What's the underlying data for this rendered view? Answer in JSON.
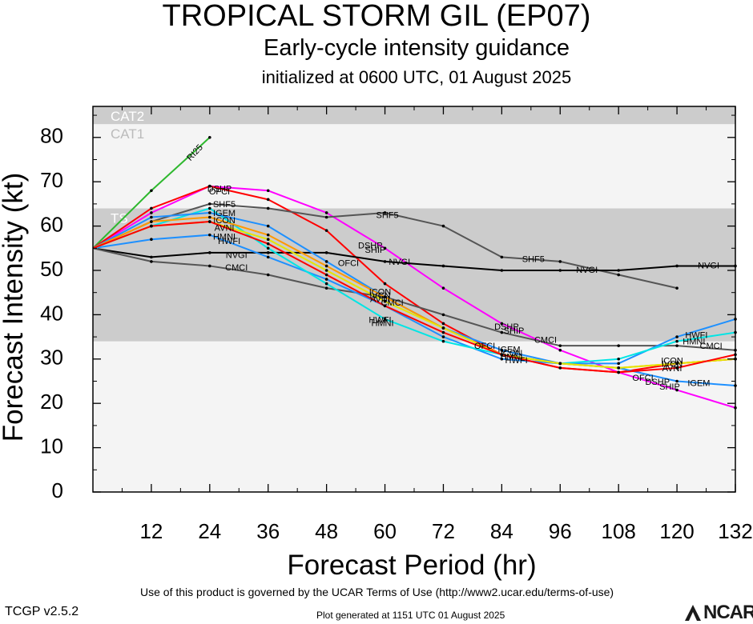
{
  "header": {
    "title": "TROPICAL STORM GIL (EP07)",
    "subtitle": "Early-cycle intensity guidance",
    "init": "initialized at 0600 UTC, 01 August 2025"
  },
  "footer": {
    "terms": "Use of this product is governed by the UCAR Terms of Use (http://www2.ucar.edu/terms-of-use)",
    "version": "TCGP v2.5.2",
    "generated": "Plot generated at 1151 UTC   01 August 2025",
    "logo": "NCAR"
  },
  "chart_data": {
    "type": "line",
    "xlabel": "Forecast Period (hr)",
    "ylabel": "Forecast Intensity (kt)",
    "xlim": [
      0,
      132
    ],
    "ylim": [
      0,
      87
    ],
    "xticks": [
      12,
      24,
      36,
      48,
      60,
      72,
      84,
      96,
      108,
      120,
      132
    ],
    "yticks": [
      0,
      10,
      20,
      30,
      40,
      50,
      60,
      70,
      80
    ],
    "bands": [
      {
        "label": "TS",
        "from": 34,
        "to": 64,
        "color": "#cccccc"
      },
      {
        "label": "CAT1",
        "from": 64,
        "to": 83,
        "color": "#f4f4f4"
      },
      {
        "label": "CAT2",
        "from": 83,
        "to": 87,
        "color": "#cccccc"
      }
    ],
    "series": [
      {
        "name": "RI25",
        "color": "#2eb82e",
        "x": [
          0,
          12,
          24
        ],
        "y": [
          55,
          68,
          80
        ]
      },
      {
        "name": "DSHP",
        "color": "#ff00ff",
        "x": [
          0,
          12,
          24,
          36,
          48,
          60,
          72,
          84,
          96,
          108,
          120,
          132
        ],
        "y": [
          55,
          63,
          69,
          68,
          63,
          55,
          46,
          38,
          32,
          27,
          23,
          19
        ]
      },
      {
        "name": "OFCI",
        "color": "#ff0000",
        "x": [
          0,
          12,
          24,
          36,
          48,
          60,
          72,
          84,
          96,
          108,
          120,
          132
        ],
        "y": [
          55,
          64,
          69,
          66,
          59,
          47,
          38,
          31,
          28,
          27,
          29,
          30
        ]
      },
      {
        "name": "SHF5",
        "color": "#555555",
        "x": [
          0,
          12,
          24,
          36,
          48,
          60,
          72,
          84,
          96,
          108,
          120
        ],
        "y": [
          55,
          61,
          65,
          64,
          62,
          63,
          60,
          53,
          52,
          49,
          46
        ]
      },
      {
        "name": "NVGI",
        "color": "#000000",
        "x": [
          0,
          12,
          24,
          36,
          48,
          60,
          72,
          84,
          96,
          108,
          120,
          132
        ],
        "y": [
          55,
          53,
          54,
          54,
          54,
          52,
          51,
          50,
          50,
          50,
          51,
          51
        ]
      },
      {
        "name": "CMCI",
        "color": "#555555",
        "x": [
          0,
          12,
          24,
          36,
          48,
          60,
          72,
          84,
          96,
          108,
          120,
          132
        ],
        "y": [
          55,
          52,
          51,
          49,
          46,
          44,
          40,
          36,
          33,
          33,
          33,
          32
        ]
      },
      {
        "name": "HWFI",
        "color": "#1e90ff",
        "x": [
          0,
          12,
          24,
          36,
          48,
          60,
          72,
          84,
          96,
          108,
          120,
          132
        ],
        "y": [
          55,
          57,
          58,
          53,
          48,
          42,
          35,
          30,
          29,
          29,
          35,
          39
        ]
      },
      {
        "name": "HMNI",
        "color": "#00e5e5",
        "x": [
          0,
          12,
          24,
          36,
          48,
          60,
          72,
          84,
          96,
          108,
          120,
          132
        ],
        "y": [
          55,
          60,
          64,
          55,
          47,
          39,
          34,
          31,
          29,
          30,
          34,
          36
        ]
      },
      {
        "name": "IGEM",
        "color": "#1e90ff",
        "x": [
          0,
          12,
          24,
          36,
          48,
          60,
          72,
          84,
          96,
          108,
          120,
          132
        ],
        "y": [
          55,
          62,
          63,
          60,
          52,
          44,
          37,
          32,
          29,
          28,
          25,
          24
        ]
      },
      {
        "name": "ICON",
        "color": "#ff9900",
        "x": [
          0,
          12,
          24,
          36,
          48,
          60,
          72,
          84,
          96,
          108,
          120,
          132
        ],
        "y": [
          55,
          61,
          62,
          58,
          51,
          44,
          37,
          31,
          29,
          28,
          29,
          30
        ]
      },
      {
        "name": "IVCN",
        "color": "#e6e600",
        "x": [
          0,
          12,
          24,
          36,
          48,
          60,
          72,
          84,
          96,
          108,
          120,
          132
        ],
        "y": [
          55,
          60,
          61,
          57,
          50,
          43,
          37,
          31,
          29,
          28,
          29,
          30
        ]
      },
      {
        "name": "AVNI",
        "color": "#ff0000",
        "x": [
          0,
          12,
          24,
          36,
          48,
          60,
          72,
          84,
          96,
          108,
          120,
          132
        ],
        "y": [
          55,
          60,
          61,
          56,
          49,
          42,
          36,
          31,
          28,
          27,
          28,
          31
        ]
      }
    ],
    "line_labels": [
      {
        "text": "RI25",
        "x": 21,
        "y": 76.5,
        "rotate": -47
      },
      {
        "text": "DSHP",
        "x": 26,
        "y": 68.3
      },
      {
        "text": "OFCI",
        "x": 26,
        "y": 67.7
      },
      {
        "text": "SHF5",
        "x": 27,
        "y": 64.8
      },
      {
        "text": "IGEM",
        "x": 27,
        "y": 62.8
      },
      {
        "text": "ICON",
        "x": 27,
        "y": 61.2
      },
      {
        "text": "AVNI",
        "x": 27,
        "y": 59.5
      },
      {
        "text": "HMNI",
        "x": 27,
        "y": 57.5
      },
      {
        "text": "HWFI",
        "x": 28,
        "y": 56.5
      },
      {
        "text": "NVGI",
        "x": 29.5,
        "y": 53.3
      },
      {
        "text": "CMCI",
        "x": 29.5,
        "y": 50.5
      },
      {
        "text": "SHF5",
        "x": 60.5,
        "y": 62.3
      },
      {
        "text": "DSHP",
        "x": 57,
        "y": 55.5
      },
      {
        "text": "SHIP",
        "x": 58,
        "y": 54.5
      },
      {
        "text": "OFCI",
        "x": 52.5,
        "y": 51.5
      },
      {
        "text": "NVGI",
        "x": 63,
        "y": 51.8
      },
      {
        "text": "ICON",
        "x": 59,
        "y": 45
      },
      {
        "text": "IVCN",
        "x": 59,
        "y": 44.2
      },
      {
        "text": "AVNI",
        "x": 59,
        "y": 43.4
      },
      {
        "text": "CMCI",
        "x": 61.5,
        "y": 42.6
      },
      {
        "text": "HWFI",
        "x": 59,
        "y": 38.7
      },
      {
        "text": "HMNI",
        "x": 59.5,
        "y": 38
      },
      {
        "text": "DSHP",
        "x": 85,
        "y": 37.2
      },
      {
        "text": "SHIP",
        "x": 86.5,
        "y": 36.3
      },
      {
        "text": "OFCI",
        "x": 80.5,
        "y": 32.8
      },
      {
        "text": "IGEM",
        "x": 85.5,
        "y": 32
      },
      {
        "text": "ICON",
        "x": 86,
        "y": 31.2
      },
      {
        "text": "CMCI",
        "x": 93,
        "y": 34.2
      },
      {
        "text": "HMNI",
        "x": 86,
        "y": 30.4
      },
      {
        "text": "HWFI",
        "x": 87,
        "y": 29.6
      },
      {
        "text": "SHF5",
        "x": 90.5,
        "y": 52.4
      },
      {
        "text": "NVGI",
        "x": 101.5,
        "y": 50
      },
      {
        "text": "HWFI",
        "x": 124,
        "y": 35.3
      },
      {
        "text": "HMNI",
        "x": 123.5,
        "y": 33.8
      },
      {
        "text": "CMCI",
        "x": 127,
        "y": 32.8
      },
      {
        "text": "NVGI",
        "x": 126.5,
        "y": 51
      },
      {
        "text": "ICON",
        "x": 119,
        "y": 29.5
      },
      {
        "text": "IVCN",
        "x": 119,
        "y": 28.8
      },
      {
        "text": "AVNI",
        "x": 119,
        "y": 27.8
      },
      {
        "text": "OFCI",
        "x": 113,
        "y": 25.6
      },
      {
        "text": "DSHP",
        "x": 116,
        "y": 24.7
      },
      {
        "text": "SHIP",
        "x": 118.5,
        "y": 23.6
      },
      {
        "text": "IGEM",
        "x": 124.5,
        "y": 24.4
      }
    ]
  }
}
